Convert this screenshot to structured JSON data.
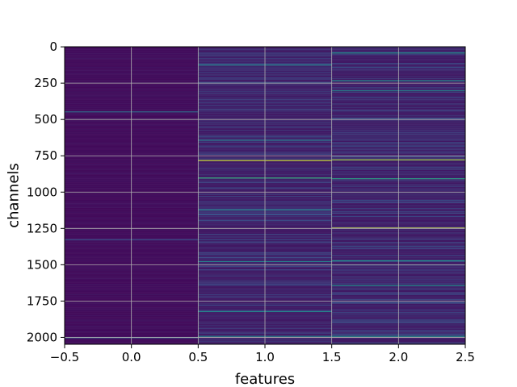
{
  "chart_data": {
    "type": "heatmap",
    "title": "",
    "xlabel": "features",
    "ylabel": "channels",
    "xlim": [
      -0.5,
      2.5
    ],
    "ylim": [
      2047.5,
      -0.5
    ],
    "y_inverted": true,
    "grid": true,
    "colormap": "viridis",
    "n_rows": 2048,
    "n_cols": 3,
    "x_ticks": [
      -0.5,
      0.0,
      0.5,
      1.0,
      1.5,
      2.0,
      2.5
    ],
    "x_tick_labels": [
      "−0.5",
      "0.0",
      "0.5",
      "1.0",
      "1.5",
      "2.0",
      "2.5"
    ],
    "y_ticks": [
      0,
      250,
      500,
      750,
      1000,
      1250,
      1500,
      1750,
      2000
    ],
    "y_tick_labels": [
      "0",
      "250",
      "500",
      "750",
      "1000",
      "1250",
      "1500",
      "1750",
      "2000"
    ],
    "columns": [
      {
        "feature": 0,
        "base_value": 0.03,
        "variation": 0.04,
        "highlights": [
          {
            "channel": 445,
            "value": 0.35
          },
          {
            "channel": 1325,
            "value": 0.25
          },
          {
            "channel": 2000,
            "value": 0.3
          }
        ]
      },
      {
        "feature": 1,
        "base_value": 0.07,
        "variation": 0.18,
        "highlights": [
          {
            "channel": 122,
            "value": 0.45
          },
          {
            "channel": 640,
            "value": 0.4
          },
          {
            "channel": 780,
            "value": 0.92
          },
          {
            "channel": 900,
            "value": 0.6
          },
          {
            "channel": 1120,
            "value": 0.45
          },
          {
            "channel": 1475,
            "value": 0.45
          },
          {
            "channel": 1820,
            "value": 0.45
          },
          {
            "channel": 1990,
            "value": 0.45
          }
        ]
      },
      {
        "feature": 2,
        "base_value": 0.07,
        "variation": 0.2,
        "highlights": [
          {
            "channel": 40,
            "value": 0.5
          },
          {
            "channel": 230,
            "value": 0.5
          },
          {
            "channel": 300,
            "value": 0.45
          },
          {
            "channel": 775,
            "value": 0.85
          },
          {
            "channel": 905,
            "value": 0.55
          },
          {
            "channel": 1245,
            "value": 0.95
          },
          {
            "channel": 1470,
            "value": 0.5
          },
          {
            "channel": 1640,
            "value": 0.5
          },
          {
            "channel": 1990,
            "value": 0.5
          }
        ]
      }
    ]
  }
}
